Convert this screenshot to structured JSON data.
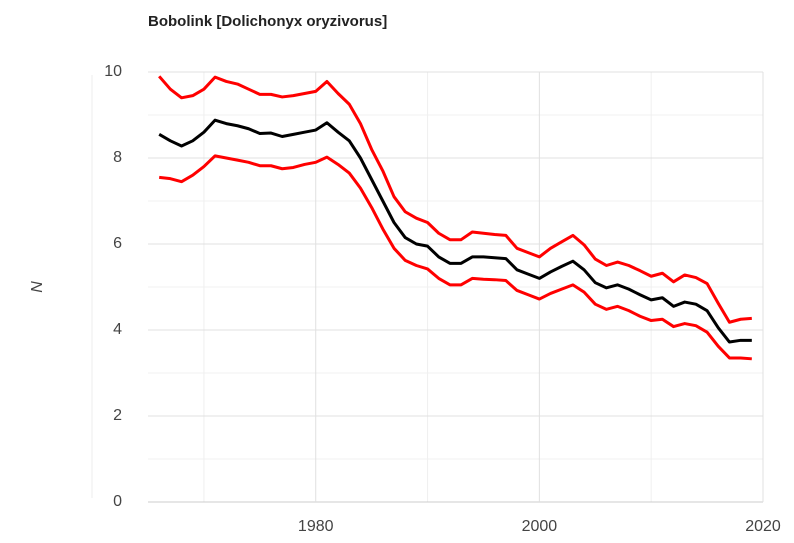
{
  "chart_data": {
    "type": "line",
    "title": "Bobolink [Dolichonyx oryzivorus]",
    "y_label": "N",
    "x": [
      1966,
      1967,
      1968,
      1969,
      1970,
      1971,
      1972,
      1973,
      1974,
      1975,
      1976,
      1977,
      1978,
      1979,
      1980,
      1981,
      1982,
      1983,
      1984,
      1985,
      1986,
      1987,
      1988,
      1989,
      1990,
      1991,
      1992,
      1993,
      1994,
      1995,
      1996,
      1997,
      1998,
      1999,
      2000,
      2001,
      2002,
      2003,
      2004,
      2005,
      2006,
      2007,
      2008,
      2009,
      2010,
      2011,
      2012,
      2013,
      2014,
      2015,
      2016,
      2017,
      2018,
      2019
    ],
    "series": [
      {
        "color": "#ff0000",
        "values": [
          9.9,
          9.6,
          9.4,
          9.45,
          9.6,
          9.88,
          9.78,
          9.72,
          9.6,
          9.48,
          9.48,
          9.42,
          9.45,
          9.5,
          9.55,
          9.78,
          9.5,
          9.25,
          8.8,
          8.2,
          7.7,
          7.1,
          6.75,
          6.6,
          6.5,
          6.25,
          6.1,
          6.1,
          6.28,
          6.25,
          6.22,
          6.2,
          5.9,
          5.8,
          5.7,
          5.9,
          6.05,
          6.2,
          5.98,
          5.65,
          5.5,
          5.58,
          5.5,
          5.38,
          5.25,
          5.32,
          5.12,
          5.28,
          5.22,
          5.08,
          4.62,
          4.18,
          4.25,
          4.27
        ]
      },
      {
        "color": "#000000",
        "values": [
          8.55,
          8.4,
          8.28,
          8.4,
          8.6,
          8.88,
          8.8,
          8.75,
          8.68,
          8.57,
          8.58,
          8.5,
          8.55,
          8.6,
          8.65,
          8.82,
          8.6,
          8.4,
          8.0,
          7.5,
          7.0,
          6.5,
          6.15,
          6.0,
          5.95,
          5.7,
          5.55,
          5.55,
          5.7,
          5.7,
          5.68,
          5.66,
          5.4,
          5.3,
          5.2,
          5.35,
          5.48,
          5.6,
          5.4,
          5.1,
          4.98,
          5.05,
          4.95,
          4.82,
          4.7,
          4.75,
          4.55,
          4.65,
          4.6,
          4.45,
          4.05,
          3.72,
          3.76,
          3.76
        ]
      },
      {
        "color": "#ff0000",
        "values": [
          7.55,
          7.52,
          7.45,
          7.6,
          7.8,
          8.05,
          8.0,
          7.95,
          7.9,
          7.82,
          7.82,
          7.75,
          7.78,
          7.85,
          7.9,
          8.02,
          7.85,
          7.65,
          7.3,
          6.85,
          6.35,
          5.9,
          5.62,
          5.5,
          5.42,
          5.2,
          5.05,
          5.05,
          5.2,
          5.18,
          5.17,
          5.15,
          4.92,
          4.82,
          4.72,
          4.85,
          4.95,
          5.05,
          4.88,
          4.6,
          4.48,
          4.55,
          4.45,
          4.32,
          4.22,
          4.25,
          4.08,
          4.15,
          4.1,
          3.95,
          3.62,
          3.35,
          3.35,
          3.33
        ]
      }
    ],
    "xlim": [
      1965,
      2020
    ],
    "xticks": [
      1980,
      2000,
      2020
    ],
    "x_minor_ticks": [
      1970,
      1990,
      2010
    ],
    "ylim": [
      0,
      10
    ],
    "yticks": [
      0,
      2,
      4,
      6,
      8,
      10
    ],
    "y_minor_ticks": [
      1,
      3,
      5,
      7,
      9
    ],
    "grid": true
  }
}
